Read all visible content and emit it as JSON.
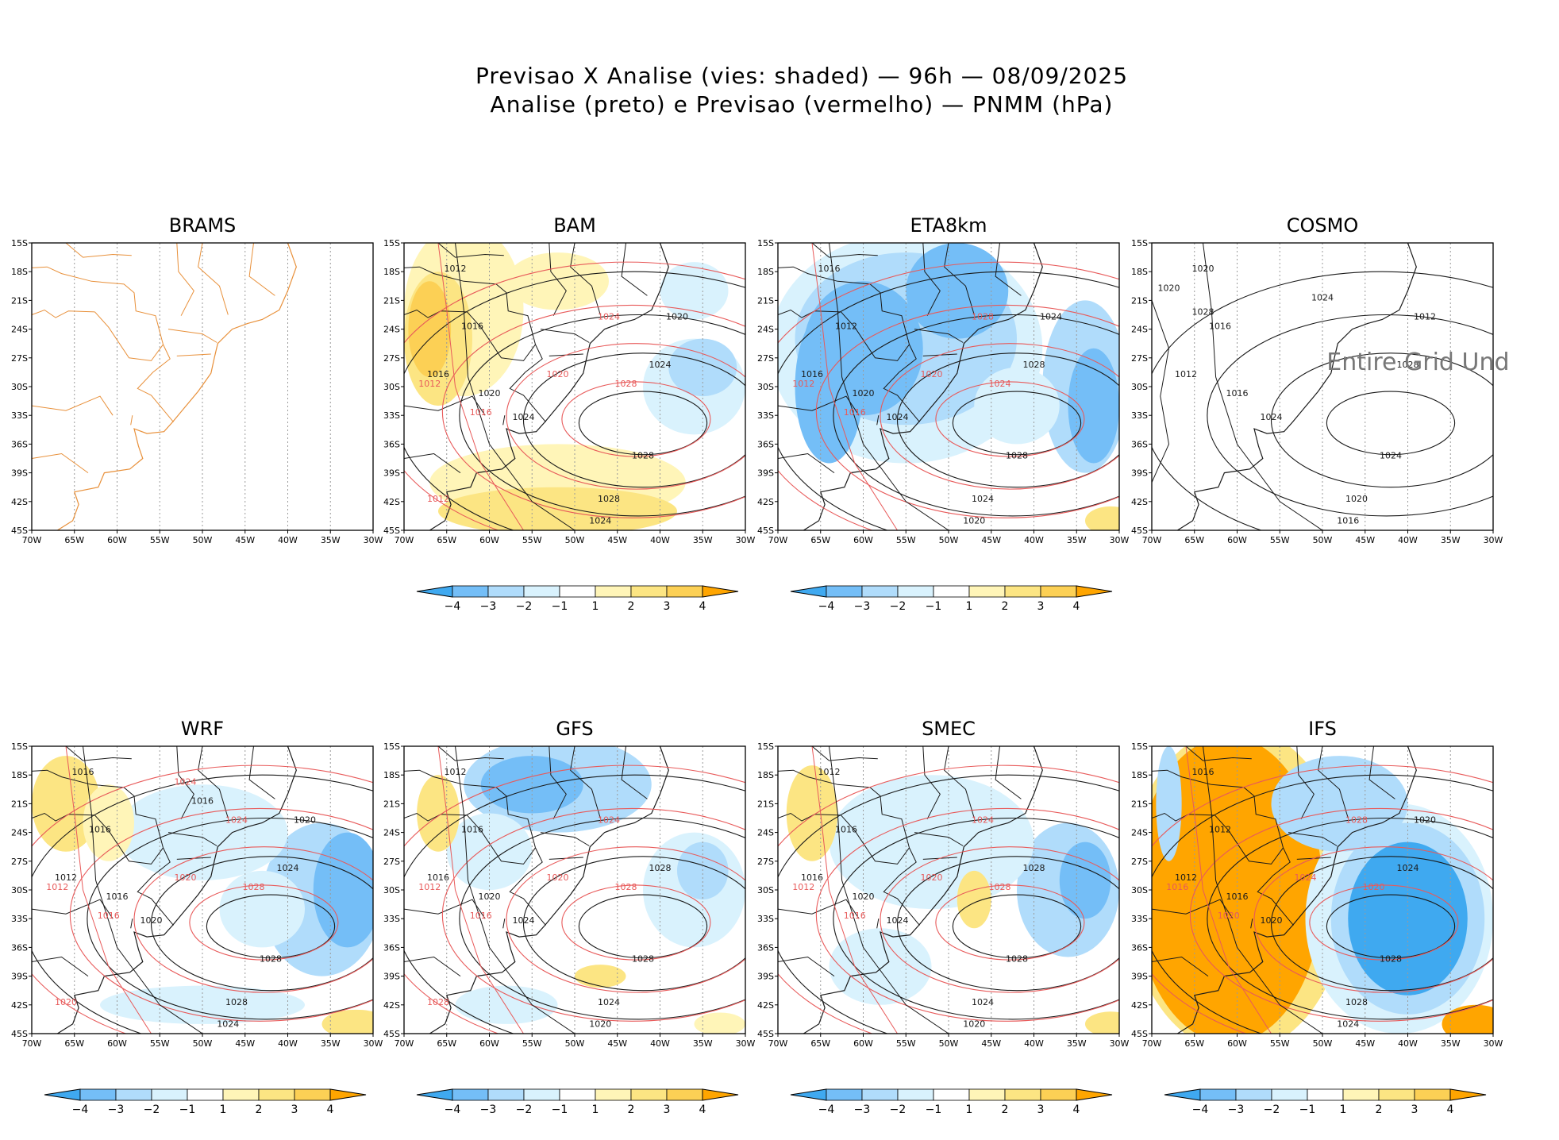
{
  "figure": {
    "title_line1": "Previsao X Analise (vies: shaded) — 96h — 08/09/2025",
    "title_line2": "Analise (preto) e Previsao (vermelho) — PNMM (hPa)",
    "colors": {
      "neg4": "#3fa9f0",
      "neg3": "#74bef7",
      "neg2": "#b0dcfb",
      "neg1": "#d9f2fd",
      "pos1": "#fff5b8",
      "pos2": "#fce583",
      "pos3": "#fcd055",
      "pos4": "#ffa500",
      "analysis": "#1a1a1a",
      "forecast": "#e85a5a",
      "brams_coast": "#e8903a",
      "grid": "#9a9a9a"
    }
  },
  "chart_data": {
    "type": "map-panels",
    "variable": "PNMM (hPa)",
    "lead_time": "96h",
    "date": "08/09/2025",
    "x_ticks": [
      "70W",
      "65W",
      "60W",
      "55W",
      "50W",
      "45W",
      "40W",
      "35W",
      "30W"
    ],
    "y_ticks": [
      "15S",
      "18S",
      "21S",
      "24S",
      "27S",
      "30S",
      "33S",
      "36S",
      "39S",
      "42S",
      "45S"
    ],
    "lon_range": [
      -70,
      -30
    ],
    "lat_range": [
      -45,
      -15
    ],
    "colorbar_ticks": [
      "−4",
      "−3",
      "−2",
      "−1",
      "1",
      "2",
      "3",
      "4"
    ],
    "panels": [
      {
        "name": "BRAMS",
        "bias": "none",
        "colorbar": false,
        "note": "",
        "labels_black": [],
        "labels_red": []
      },
      {
        "name": "BAM",
        "bias": "positive-west",
        "colorbar": true,
        "note": "",
        "labels_black": [
          "1012",
          "1016",
          "1016",
          "1020",
          "1024",
          "1024",
          "1028",
          "1028",
          "1024",
          "1020"
        ],
        "labels_red": [
          "1012",
          "1016",
          "1020",
          "1024",
          "1028",
          "1012"
        ]
      },
      {
        "name": "ETA8km",
        "bias": "negative",
        "colorbar": true,
        "note": "",
        "labels_black": [
          "1016",
          "1012",
          "1016",
          "1020",
          "1024",
          "1028",
          "1028",
          "1024",
          "1020",
          "1024"
        ],
        "labels_red": [
          "1012",
          "1016",
          "1020",
          "1028",
          "1024"
        ]
      },
      {
        "name": "COSMO",
        "bias": "none",
        "colorbar": false,
        "note": "Entire Grid Und",
        "labels_black": [
          "1020",
          "1016",
          "1012",
          "1016",
          "1024",
          "1028",
          "1024",
          "1020",
          "1016",
          "1012",
          "1024",
          "1020",
          "1028"
        ],
        "labels_red": []
      },
      {
        "name": "WRF",
        "bias": "negative-east",
        "colorbar": true,
        "note": "",
        "labels_black": [
          "1016",
          "1016",
          "1012",
          "1016",
          "1020",
          "1024",
          "1028",
          "1028",
          "1024",
          "1020",
          "1016"
        ],
        "labels_red": [
          "1012",
          "1016",
          "1020",
          "1024",
          "1028",
          "1020",
          "1024"
        ]
      },
      {
        "name": "GFS",
        "bias": "negative-north",
        "colorbar": true,
        "note": "",
        "labels_black": [
          "1012",
          "1016",
          "1016",
          "1020",
          "1024",
          "1028",
          "1028",
          "1024",
          "1020"
        ],
        "labels_red": [
          "1012",
          "1016",
          "1020",
          "1024",
          "1028",
          "1028"
        ]
      },
      {
        "name": "SMEC",
        "bias": "negative-mixed",
        "colorbar": true,
        "note": "",
        "labels_black": [
          "1012",
          "1016",
          "1016",
          "1020",
          "1024",
          "1028",
          "1028",
          "1024",
          "1020"
        ],
        "labels_red": [
          "1012",
          "1016",
          "1020",
          "1024",
          "1028"
        ]
      },
      {
        "name": "IFS",
        "bias": "strong-dipole",
        "colorbar": true,
        "note": "",
        "labels_black": [
          "1016",
          "1012",
          "1012",
          "1016",
          "1020",
          "1024",
          "1028",
          "1028",
          "1024",
          "1020"
        ],
        "labels_red": [
          "1016",
          "1020",
          "1024",
          "1028",
          "1020"
        ]
      }
    ]
  }
}
